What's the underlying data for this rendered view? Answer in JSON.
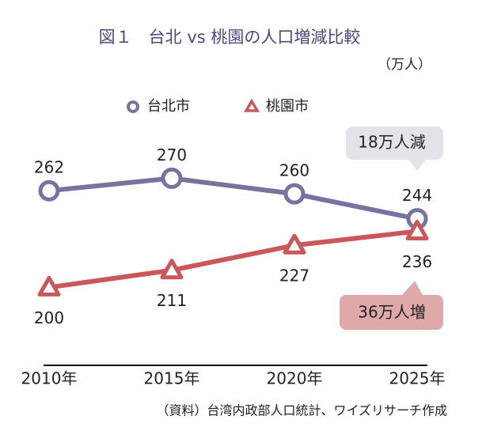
{
  "chart_data": {
    "type": "line",
    "title": "図１　台北 vs 桃園の人口増減比較",
    "unit": "（万人）",
    "source": "（資料）台湾内政部人口統計、ワイズリサーチ作成",
    "categories": [
      "2010年",
      "2015年",
      "2020年",
      "2025年"
    ],
    "series": [
      {
        "name": "台北市",
        "color": "#77739f",
        "marker": "circle",
        "values": [
          262,
          270,
          260,
          244
        ]
      },
      {
        "name": "桃園市",
        "color": "#c8585a",
        "marker": "triangle",
        "values": [
          200,
          211,
          227,
          236
        ]
      }
    ],
    "annotations": [
      {
        "text": "18万人減",
        "color": "#e4e3ea"
      },
      {
        "text": "36万人増",
        "color": "#dfa9a9"
      }
    ],
    "ylim": [
      150,
      290
    ]
  }
}
